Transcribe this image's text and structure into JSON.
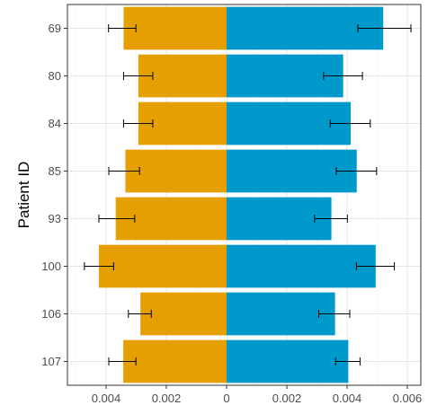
{
  "chart_data": {
    "type": "bar",
    "orientation": "horizontal-diverging",
    "title": "",
    "xlabel": "",
    "ylabel": "Patient ID",
    "xlim": [
      -0.0066,
      0.0066
    ],
    "x_ticks": [
      -0.004,
      -0.002,
      0,
      0.002,
      0.004,
      0.006
    ],
    "x_tick_labels": [
      "0.004",
      "0.002",
      "0",
      "0.002",
      "0.004",
      "0.006"
    ],
    "grid": true,
    "legend": "none",
    "categories": [
      "69",
      "80",
      "84",
      "85",
      "93",
      "100",
      "106",
      "107"
    ],
    "series": [
      {
        "side": "left",
        "color": "#E69F00",
        "values": [
          0.00342,
          0.00293,
          0.00293,
          0.00336,
          0.00368,
          0.00424,
          0.00286,
          0.00343
        ],
        "error_low": [
          0.00392,
          0.00342,
          0.00342,
          0.00391,
          0.00424,
          0.00472,
          0.00326,
          0.00391
        ],
        "error_high": [
          0.00301,
          0.00245,
          0.00245,
          0.00289,
          0.00305,
          0.00375,
          0.0025,
          0.00301
        ]
      },
      {
        "side": "right",
        "color": "#0099CC",
        "values": [
          0.0052,
          0.00387,
          0.00412,
          0.00432,
          0.00348,
          0.00495,
          0.0036,
          0.00404
        ],
        "error_low": [
          0.00436,
          0.00322,
          0.00344,
          0.00364,
          0.00292,
          0.00431,
          0.00306,
          0.00362
        ],
        "error_high": [
          0.00612,
          0.00451,
          0.00477,
          0.00498,
          0.00401,
          0.00557,
          0.00409,
          0.00443
        ]
      }
    ]
  }
}
